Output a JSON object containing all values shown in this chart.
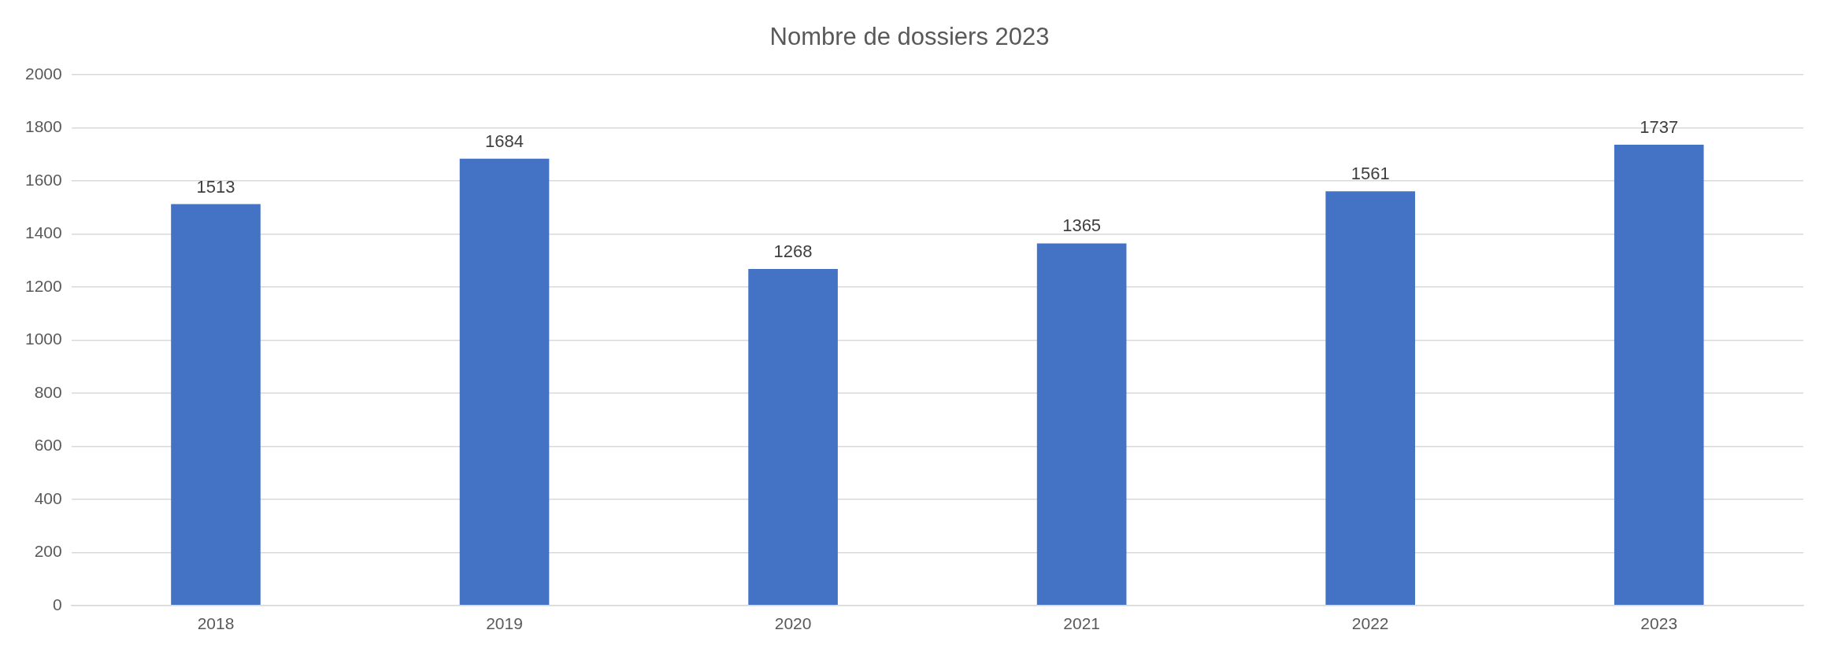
{
  "chart_data": {
    "type": "bar",
    "title": "Nombre de dossiers 2023",
    "categories": [
      "2018",
      "2019",
      "2020",
      "2021",
      "2022",
      "2023"
    ],
    "values": [
      1513,
      1684,
      1268,
      1365,
      1561,
      1737
    ],
    "color": "#4472c4",
    "ylim": [
      0,
      2000
    ],
    "yticks": [
      0,
      200,
      400,
      600,
      800,
      1000,
      1200,
      1400,
      1600,
      1800,
      2000
    ],
    "grid": "y",
    "legend": false,
    "data_labels": true
  }
}
